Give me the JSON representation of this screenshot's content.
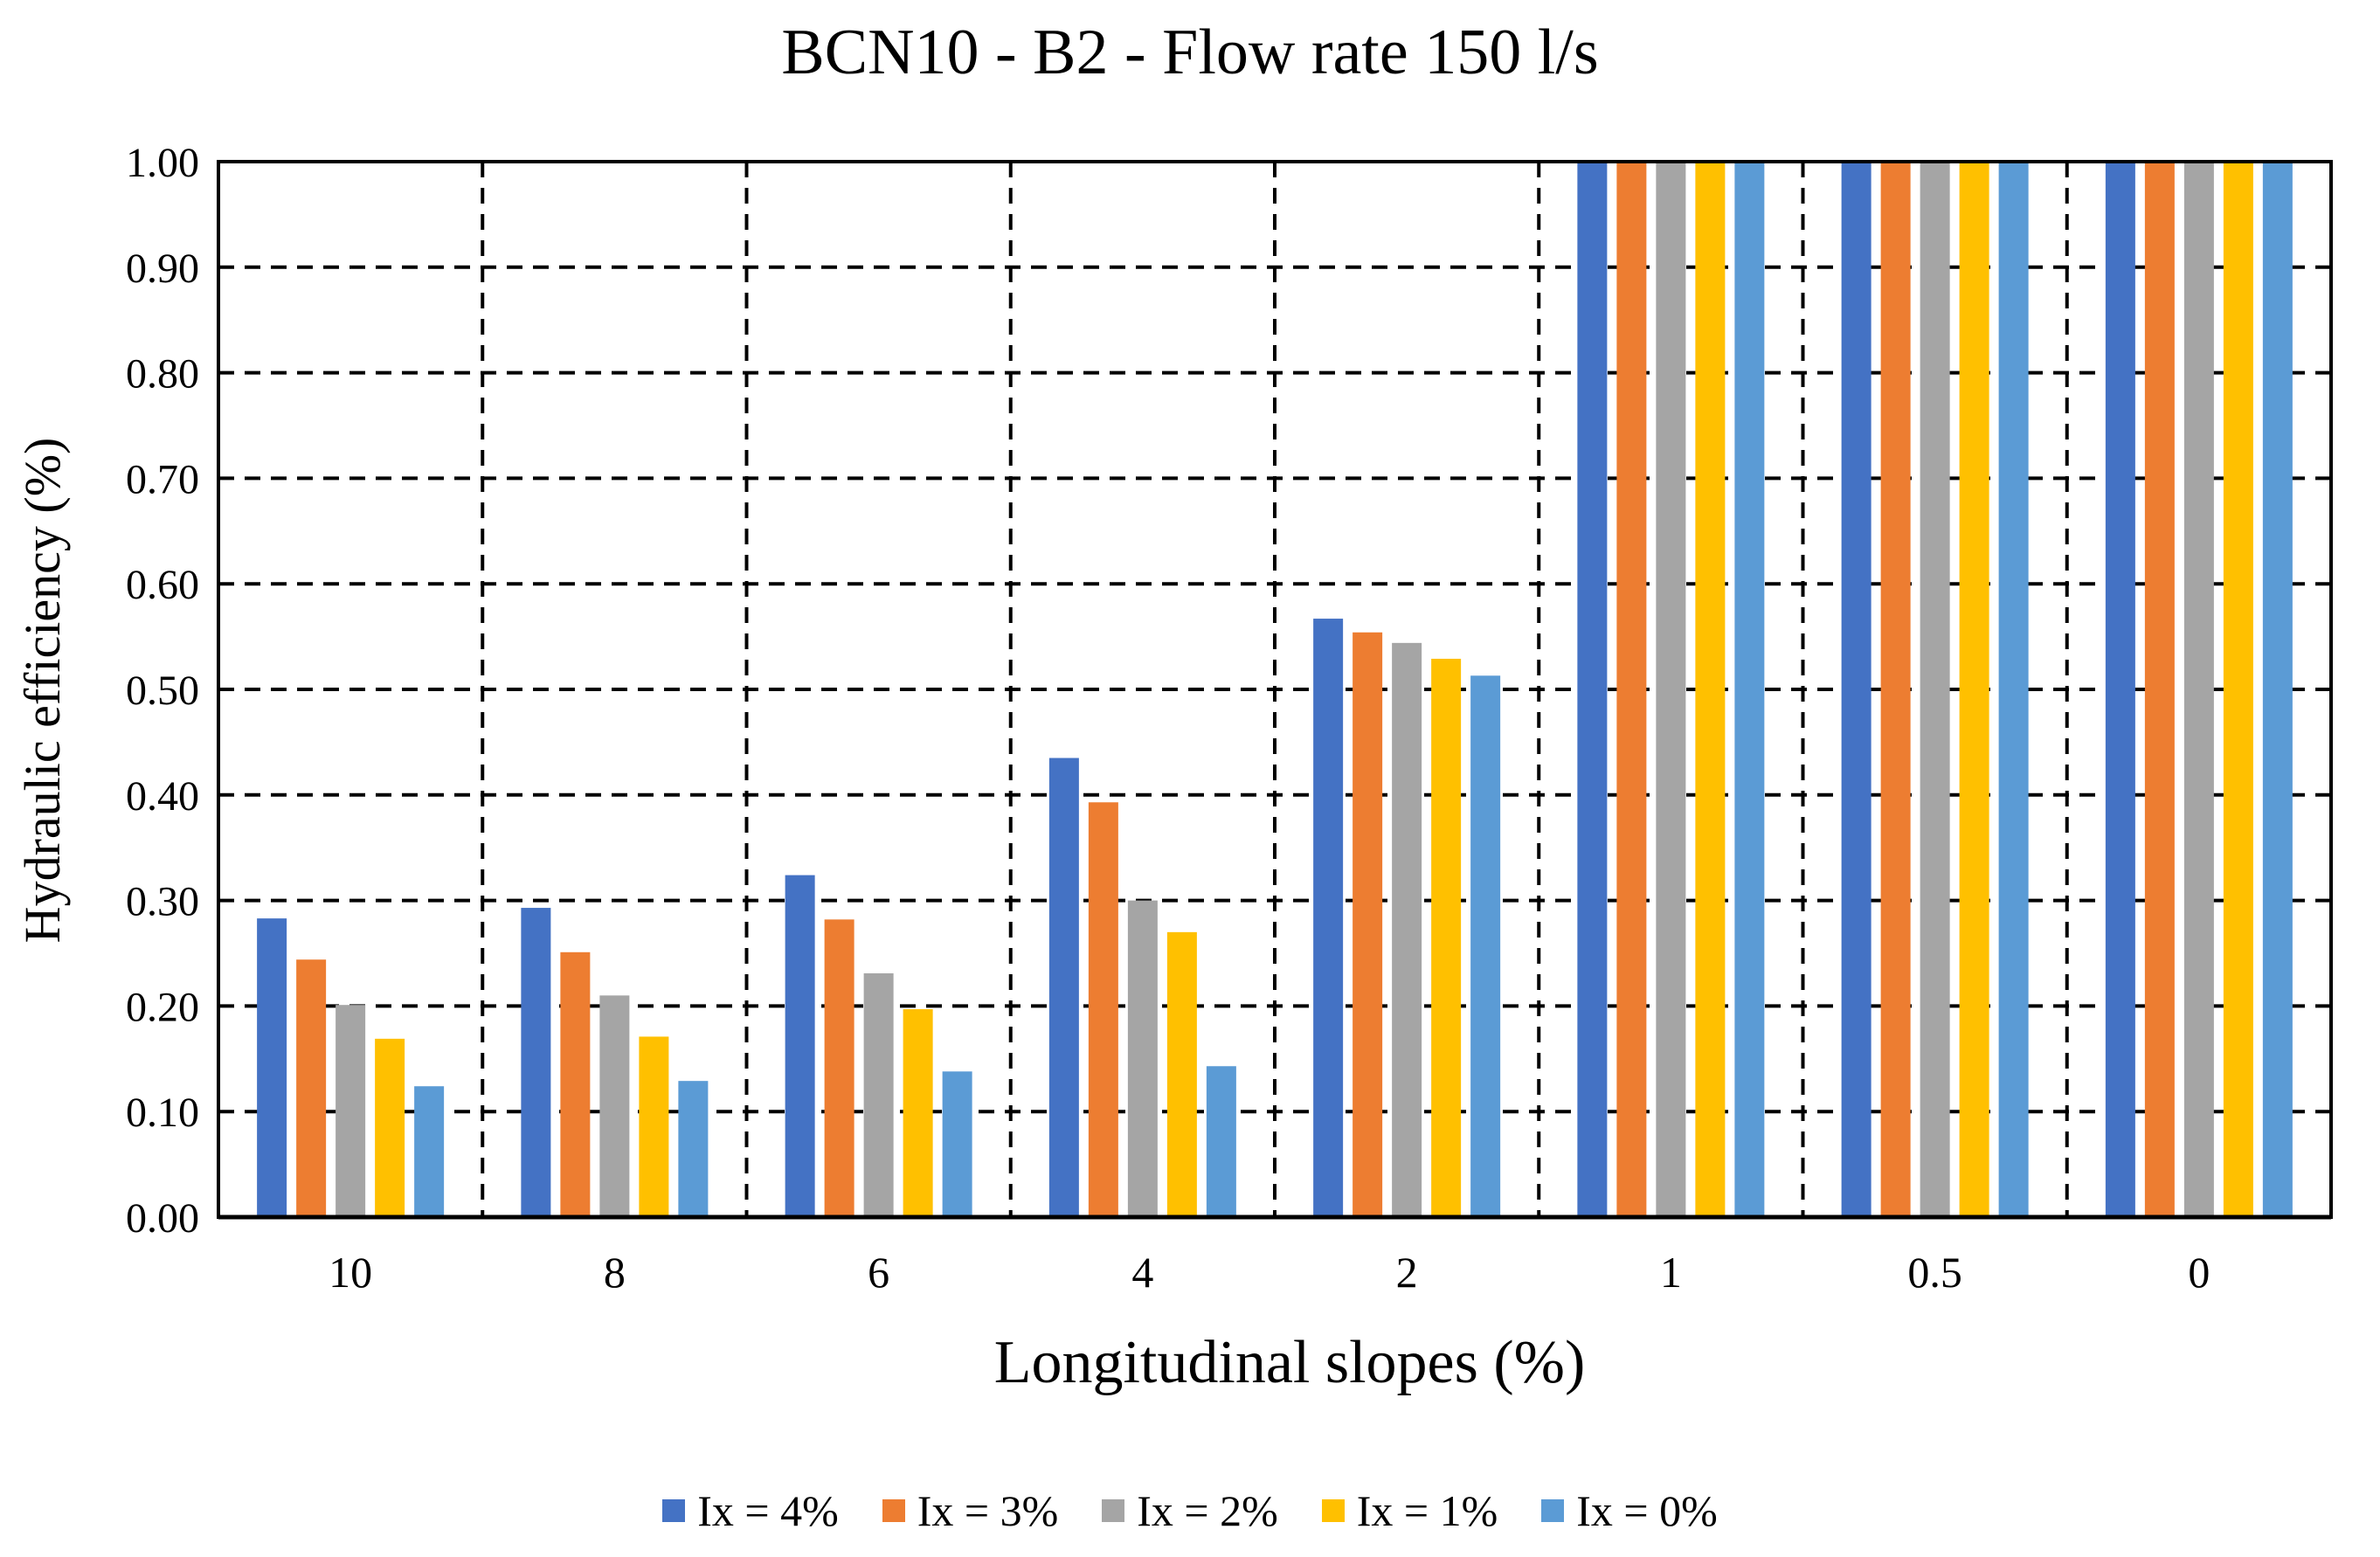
{
  "chart_data": {
    "type": "bar",
    "title": "BCN10  - B2 - Flow rate 150 l/s",
    "xlabel": "Longitudinal slopes (%)",
    "ylabel": "Hydraulic efficiency  (%)",
    "ylim": [
      0,
      1
    ],
    "yticks": [
      "0.00",
      "0.10",
      "0.20",
      "0.30",
      "0.40",
      "0.50",
      "0.60",
      "0.70",
      "0.80",
      "0.90",
      "1.00"
    ],
    "categories": [
      "10",
      "8",
      "6",
      "4",
      "2",
      "1",
      "0.5",
      "0"
    ],
    "grid": true,
    "legend_position": "bottom",
    "series": [
      {
        "name": "Ix = 4%",
        "color": "#4472C4",
        "values": [
          0.283,
          0.293,
          0.324,
          0.435,
          0.567,
          1.0,
          1.0,
          1.0
        ]
      },
      {
        "name": "Ix = 3%",
        "color": "#ED7D31",
        "values": [
          0.244,
          0.251,
          0.282,
          0.393,
          0.554,
          1.0,
          1.0,
          1.0
        ]
      },
      {
        "name": "Ix = 2%",
        "color": "#A5A5A5",
        "values": [
          0.201,
          0.21,
          0.231,
          0.3,
          0.544,
          1.0,
          1.0,
          1.0
        ]
      },
      {
        "name": "Ix = 1%",
        "color": "#FFC000",
        "values": [
          0.169,
          0.171,
          0.197,
          0.27,
          0.529,
          1.0,
          1.0,
          1.0
        ]
      },
      {
        "name": "Ix = 0%",
        "color": "#5B9BD5",
        "values": [
          0.124,
          0.129,
          0.138,
          0.143,
          0.513,
          1.0,
          1.0,
          1.0
        ]
      }
    ]
  }
}
